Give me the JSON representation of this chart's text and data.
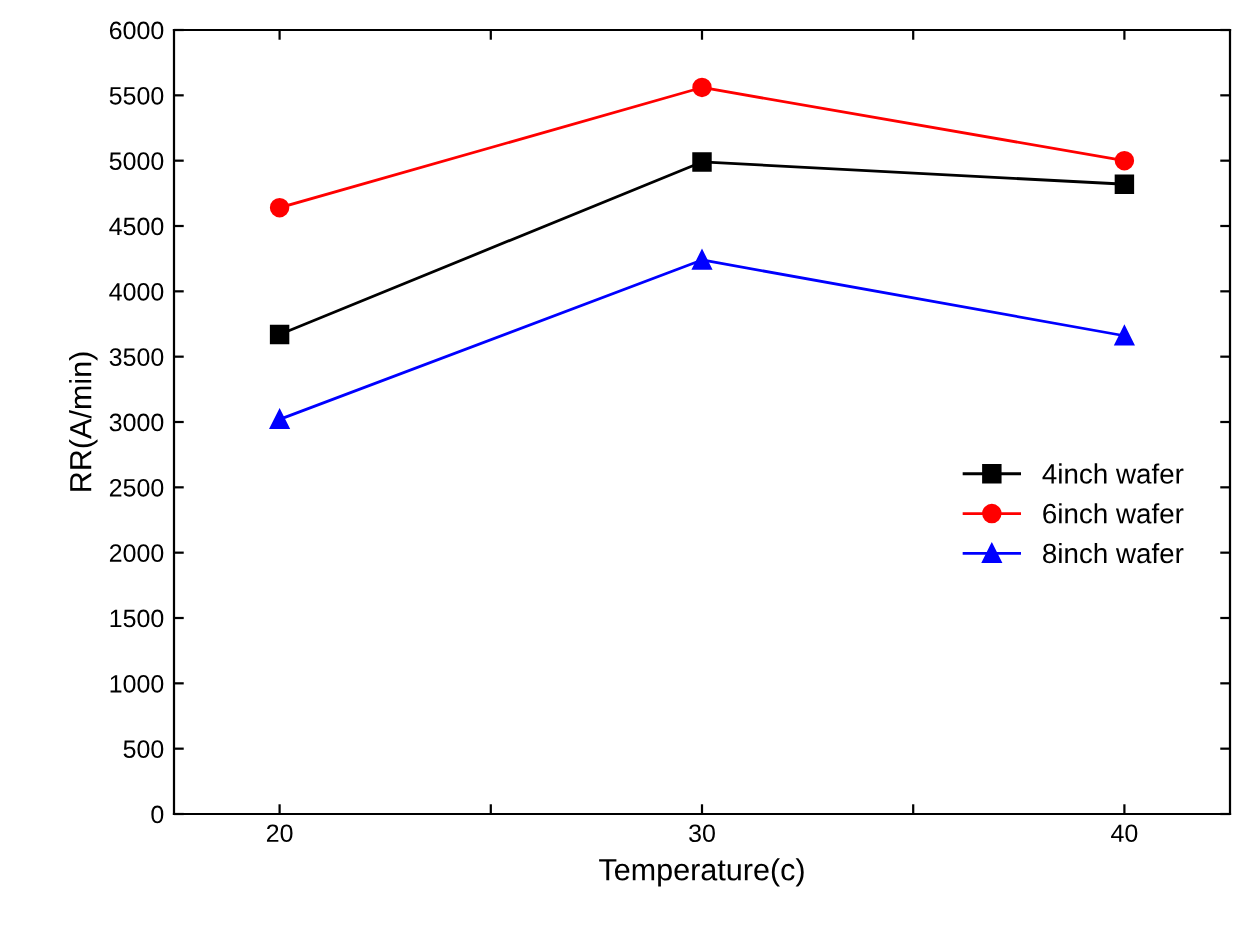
{
  "chart_data": {
    "type": "line",
    "xlabel": "Temperature(c)",
    "ylabel": "RR(A/min)",
    "x": [
      20,
      30,
      40
    ],
    "series": [
      {
        "name": "4inch wafer",
        "color": "#000000",
        "marker": "square",
        "values": [
          3670,
          4990,
          4820
        ]
      },
      {
        "name": "6inch wafer",
        "color": "#ff0000",
        "marker": "circle",
        "values": [
          4640,
          5560,
          5000
        ]
      },
      {
        "name": "8inch wafer",
        "color": "#0000ff",
        "marker": "triangle",
        "values": [
          3020,
          4240,
          3660
        ]
      }
    ],
    "xlim": [
      17.5,
      42.5
    ],
    "xticks": [
      20,
      {
        "value": 25,
        "label": null
      },
      30,
      {
        "value": 35,
        "label": null
      },
      40
    ],
    "ylim": [
      0,
      6000
    ],
    "yticks": [
      0,
      500,
      1000,
      1500,
      2000,
      2500,
      3000,
      3500,
      4000,
      4500,
      5000,
      5500,
      6000
    ],
    "legend": "right",
    "grid": false,
    "line_style": "solid"
  }
}
